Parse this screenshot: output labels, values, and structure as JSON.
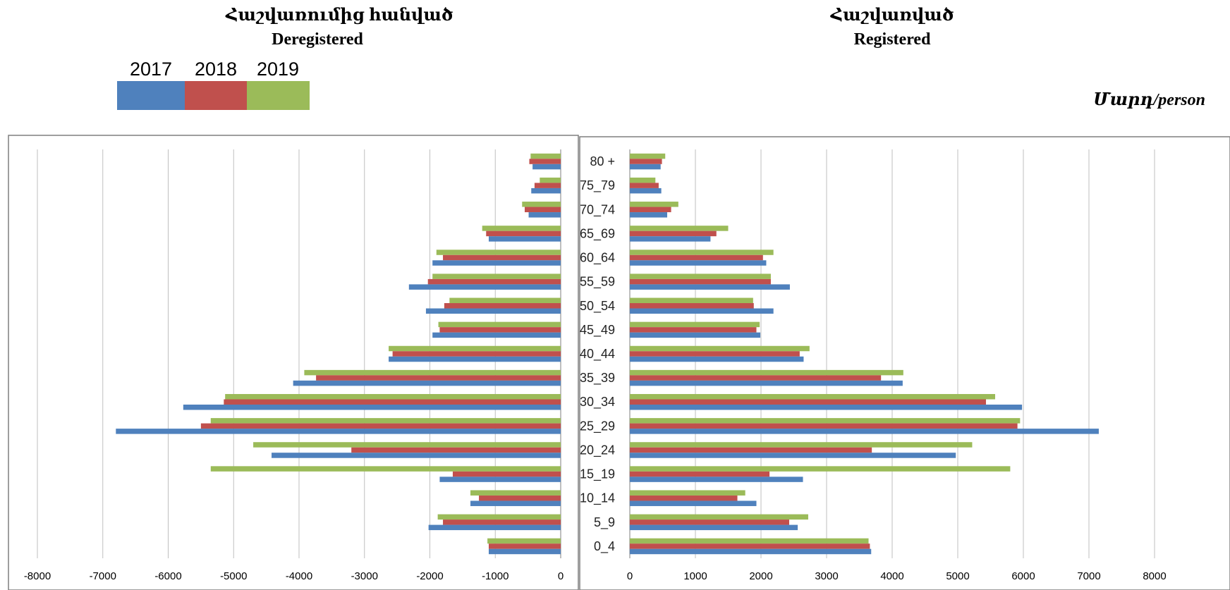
{
  "chart_data": [
    {
      "type": "bar",
      "orientation": "horizontal",
      "title": "Հաշվառումից հանված",
      "subtitle": "Deregistered",
      "categories": [
        "0_4",
        "5_9",
        "10_14",
        "15_19",
        "20_24",
        "25_29",
        "30_34",
        "35_39",
        "40_44",
        "45_49",
        "50_54",
        "55_59",
        "60_64",
        "65_69",
        "70_74",
        "75_79",
        "80 +"
      ],
      "series": [
        {
          "name": "2017",
          "color": "#4F81BD",
          "values": [
            -1100,
            -2020,
            -1380,
            -1850,
            -4420,
            -6800,
            -5770,
            -4090,
            -2630,
            -1960,
            -2060,
            -2320,
            -1960,
            -1100,
            -490,
            -450,
            -430
          ]
        },
        {
          "name": "2018",
          "color": "#C0504D",
          "values": [
            -1100,
            -1800,
            -1250,
            -1650,
            -3200,
            -5500,
            -5150,
            -3740,
            -2570,
            -1850,
            -1780,
            -2030,
            -1800,
            -1140,
            -550,
            -400,
            -480
          ]
        },
        {
          "name": "2019",
          "color": "#9BBB59",
          "values": [
            -1120,
            -1880,
            -1380,
            -5350,
            -4700,
            -5350,
            -5130,
            -3920,
            -2630,
            -1870,
            -1700,
            -1960,
            -1900,
            -1200,
            -590,
            -320,
            -460
          ]
        }
      ],
      "xlim": [
        -8000,
        0
      ],
      "xticks": [
        -8000,
        -7000,
        -6000,
        -5000,
        -4000,
        -3000,
        -2000,
        -1000,
        0
      ],
      "grid": true
    },
    {
      "type": "bar",
      "orientation": "horizontal",
      "title": "Հաշվառված",
      "subtitle": "Registered",
      "categories": [
        "0_4",
        "5_9",
        "10_14",
        "15_19",
        "20_24",
        "25_29",
        "30_34",
        "35_39",
        "40_44",
        "45_49",
        "50_54",
        "55_59",
        "60_64",
        "65_69",
        "70_74",
        "75_79",
        "80 +"
      ],
      "series": [
        {
          "name": "2017",
          "color": "#4F81BD",
          "values": [
            3680,
            2560,
            1930,
            2640,
            4970,
            7150,
            5980,
            4160,
            2650,
            1990,
            2190,
            2440,
            2080,
            1230,
            570,
            480,
            470
          ]
        },
        {
          "name": "2018",
          "color": "#C0504D",
          "values": [
            3660,
            2430,
            1640,
            2130,
            3690,
            5910,
            5430,
            3830,
            2590,
            1930,
            1890,
            2150,
            2030,
            1320,
            630,
            440,
            490
          ]
        },
        {
          "name": "2019",
          "color": "#9BBB59",
          "values": [
            3640,
            2720,
            1760,
            5800,
            5220,
            5950,
            5570,
            4170,
            2740,
            1980,
            1880,
            2150,
            2190,
            1500,
            740,
            390,
            540
          ]
        }
      ],
      "xlim": [
        0,
        8000
      ],
      "xticks": [
        0,
        1000,
        2000,
        3000,
        4000,
        5000,
        6000,
        7000,
        8000
      ],
      "grid": true
    }
  ],
  "legend": [
    {
      "label": "2017",
      "color": "#4F81BD"
    },
    {
      "label": "2018",
      "color": "#C0504D"
    },
    {
      "label": "2019",
      "color": "#9BBB59"
    }
  ],
  "unit_label": "Մարդ/person"
}
